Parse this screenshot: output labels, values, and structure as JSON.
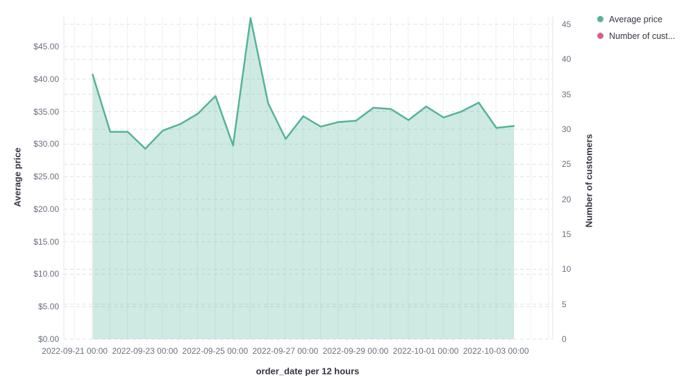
{
  "chart": {
    "legend": {
      "position": "top-right",
      "items": [
        {
          "label": "Average price",
          "color": "#54b399"
        },
        {
          "label": "Number of cust...",
          "color": "#d36086"
        }
      ]
    },
    "x_axis": {
      "title": "order_date per 12 hours",
      "tick_labels": [
        "2022-09-21 00:00",
        "2022-09-23 00:00",
        "2022-09-25 00:00",
        "2022-09-27 00:00",
        "2022-09-29 00:00",
        "2022-10-01 00:00",
        "2022-10-03 00:00"
      ]
    },
    "left_axis": {
      "title": "Average price",
      "tick_labels": [
        "$0.00",
        "$5.00",
        "$10.00",
        "$15.00",
        "$20.00",
        "$25.00",
        "$30.00",
        "$35.00",
        "$40.00",
        "$45.00"
      ]
    },
    "right_axis": {
      "title": "Number of customers",
      "tick_labels": [
        "0",
        "5",
        "10",
        "15",
        "20",
        "25",
        "30",
        "35",
        "40",
        "45"
      ]
    },
    "colors": {
      "line": "#54b399",
      "fill": "#54b399",
      "fill_opacity": 0.28,
      "pink_series": "#d36086",
      "tick_text": "#69707d",
      "title_text": "#343741",
      "grid_dashed": "#dde1e6",
      "grid_vertical": "#edf0f3",
      "axis_border": "#e0e4ea"
    }
  },
  "chart_data": {
    "type": "area",
    "title": "",
    "xlabel": "order_date per 12 hours",
    "ylabel_left": "Average price",
    "ylabel_right": "Number of customers",
    "grid": true,
    "legend_position": "top-right",
    "interval": "12 hours",
    "left_axis_tick_range": [
      0,
      45
    ],
    "right_axis_tick_range": [
      0,
      45
    ],
    "x": [
      "2022-09-21 12:00",
      "2022-09-22 00:00",
      "2022-09-22 12:00",
      "2022-09-23 00:00",
      "2022-09-23 12:00",
      "2022-09-24 00:00",
      "2022-09-24 12:00",
      "2022-09-25 00:00",
      "2022-09-25 12:00",
      "2022-09-26 00:00",
      "2022-09-26 12:00",
      "2022-09-27 00:00",
      "2022-09-27 12:00",
      "2022-09-28 00:00",
      "2022-09-28 12:00",
      "2022-09-29 00:00",
      "2022-09-29 12:00",
      "2022-09-30 00:00",
      "2022-09-30 12:00",
      "2022-10-01 00:00",
      "2022-10-01 12:00",
      "2022-10-02 00:00",
      "2022-10-02 12:00",
      "2022-10-03 00:00",
      "2022-10-03 12:00"
    ],
    "series": [
      {
        "name": "Average price",
        "axis": "left",
        "color": "#54b399",
        "visible": true,
        "values": [
          40.7,
          31.9,
          31.9,
          29.3,
          32.1,
          33.1,
          34.7,
          37.4,
          29.8,
          49.4,
          36.3,
          30.8,
          34.3,
          32.7,
          33.4,
          33.6,
          35.6,
          35.4,
          33.7,
          35.8,
          34.1,
          35.0,
          36.4,
          32.5,
          32.8
        ]
      },
      {
        "name": "Number of customers",
        "axis": "right",
        "color": "#d36086",
        "visible": false,
        "values": []
      }
    ]
  }
}
